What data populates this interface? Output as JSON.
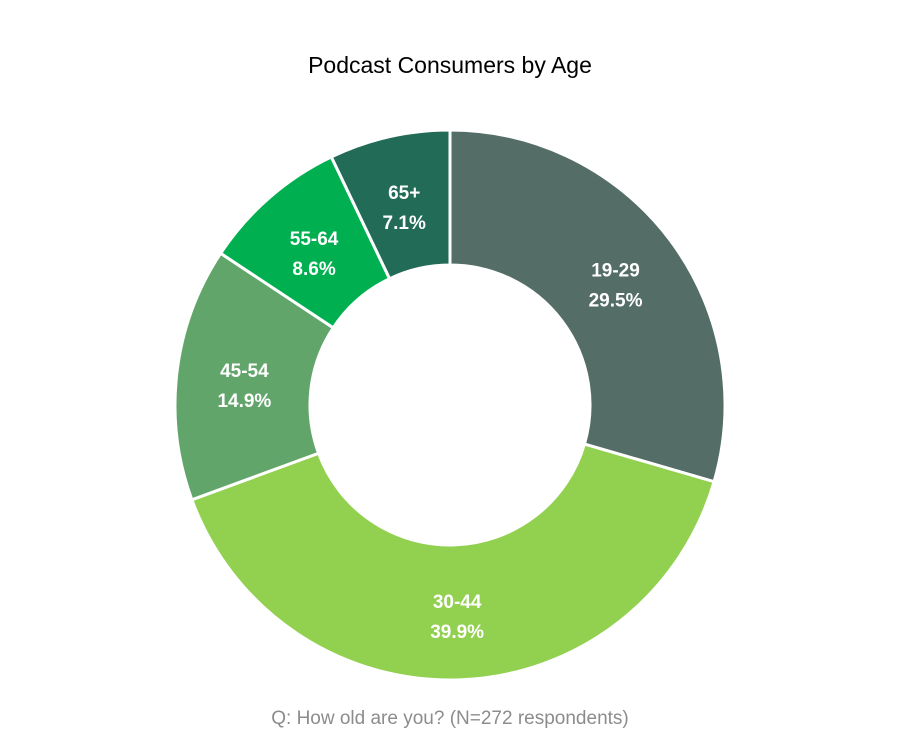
{
  "chart_data": {
    "type": "pie",
    "variant": "donut",
    "title": "Podcast Consumers by Age",
    "footnote": "Q: How old are you? (N=272 respondents)",
    "categories": [
      "19-29",
      "30-44",
      "45-54",
      "55-64",
      "65+"
    ],
    "values": [
      29.5,
      39.9,
      14.9,
      8.6,
      7.1
    ],
    "value_labels": [
      "29.5%",
      "39.9%",
      "14.9%",
      "8.6%",
      "7.1%"
    ],
    "colors": [
      "#546e67",
      "#92d050",
      "#62a56b",
      "#00b050",
      "#216b57"
    ],
    "start_angle_deg": 0,
    "direction": "clockwise",
    "legend": "none"
  }
}
